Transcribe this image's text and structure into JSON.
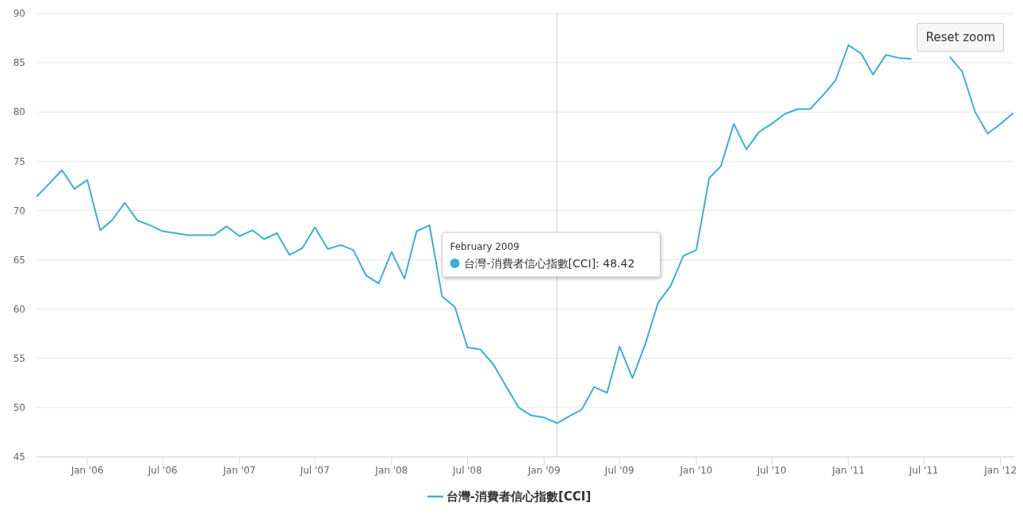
{
  "chart_data": {
    "type": "line",
    "x": [
      "2005-09",
      "2005-10",
      "2005-11",
      "2005-12",
      "2006-01",
      "2006-02",
      "2006-03",
      "2006-04",
      "2006-05",
      "2006-06",
      "2006-07",
      "2006-08",
      "2006-09",
      "2006-10",
      "2006-11",
      "2006-12",
      "2007-01",
      "2007-02",
      "2007-03",
      "2007-04",
      "2007-05",
      "2007-06",
      "2007-07",
      "2007-08",
      "2007-09",
      "2007-10",
      "2007-11",
      "2007-12",
      "2008-01",
      "2008-02",
      "2008-03",
      "2008-04",
      "2008-05",
      "2008-06",
      "2008-07",
      "2008-08",
      "2008-09",
      "2008-10",
      "2008-11",
      "2008-12",
      "2009-01",
      "2009-02",
      "2009-03",
      "2009-04",
      "2009-05",
      "2009-06",
      "2009-07",
      "2009-08",
      "2009-09",
      "2009-10",
      "2009-11",
      "2009-12",
      "2010-01",
      "2010-02",
      "2010-03",
      "2010-04",
      "2010-05",
      "2010-06",
      "2010-07",
      "2010-08",
      "2010-09",
      "2010-10",
      "2010-11",
      "2010-12",
      "2011-01",
      "2011-02",
      "2011-03",
      "2011-04",
      "2011-05",
      "2011-06",
      "2011-07",
      "2011-08",
      "2011-09",
      "2011-10",
      "2011-11",
      "2011-12",
      "2012-01",
      "2012-02"
    ],
    "series": [
      {
        "name": "台灣-消費者信心指數[CCI]",
        "color": "#3aaed8",
        "values": [
          71.4,
          72.7,
          74.1,
          72.2,
          73.1,
          68.0,
          69.0,
          70.8,
          69.0,
          68.5,
          67.9,
          67.7,
          67.5,
          67.5,
          67.5,
          68.4,
          67.4,
          68.0,
          67.1,
          67.7,
          65.5,
          66.2,
          68.3,
          66.1,
          66.5,
          66.0,
          63.4,
          62.6,
          65.8,
          63.1,
          67.9,
          68.5,
          61.3,
          60.2,
          56.1,
          55.9,
          54.4,
          52.2,
          50.0,
          49.2,
          49.0,
          48.42,
          49.1,
          49.8,
          52.1,
          51.5,
          56.2,
          53.0,
          56.5,
          60.6,
          62.4,
          65.4,
          66.0,
          73.3,
          74.5,
          78.8,
          76.2,
          78.0,
          78.8,
          79.8,
          80.3,
          80.3,
          81.7,
          83.2,
          86.8,
          85.9,
          83.8,
          85.8,
          85.5,
          85.4,
          null,
          null,
          85.6,
          84.1,
          80.0,
          77.8,
          78.8,
          79.9
        ]
      }
    ],
    "xlim": [
      "2005-09",
      "2012-02"
    ],
    "xticks": [
      {
        "value": "2006-01",
        "label": "Jan '06"
      },
      {
        "value": "2006-07",
        "label": "Jul '06"
      },
      {
        "value": "2007-01",
        "label": "Jan '07"
      },
      {
        "value": "2007-07",
        "label": "Jul '07"
      },
      {
        "value": "2008-01",
        "label": "Jan '08"
      },
      {
        "value": "2008-07",
        "label": "Jul '08"
      },
      {
        "value": "2009-01",
        "label": "Jan '09"
      },
      {
        "value": "2009-07",
        "label": "Jul '09"
      },
      {
        "value": "2010-01",
        "label": "Jan '10"
      },
      {
        "value": "2010-07",
        "label": "Jul '10"
      },
      {
        "value": "2011-01",
        "label": "Jan '11"
      },
      {
        "value": "2011-07",
        "label": "Jul '11"
      },
      {
        "value": "2012-01",
        "label": "Jan '12"
      }
    ],
    "ylim": [
      45,
      90
    ],
    "yticks": [
      45,
      50,
      55,
      60,
      65,
      70,
      75,
      80,
      85,
      90
    ],
    "grid": "y",
    "legend": "bottom",
    "marker": "none",
    "line_style": "solid",
    "ref_lines": [
      {
        "axis": "x",
        "value": "2009-02",
        "color": "#cccccc"
      }
    ],
    "annotations": [
      "February 2009",
      "台灣-消費者信心指數[CCI]: 48.42",
      "Reset zoom"
    ]
  }
}
